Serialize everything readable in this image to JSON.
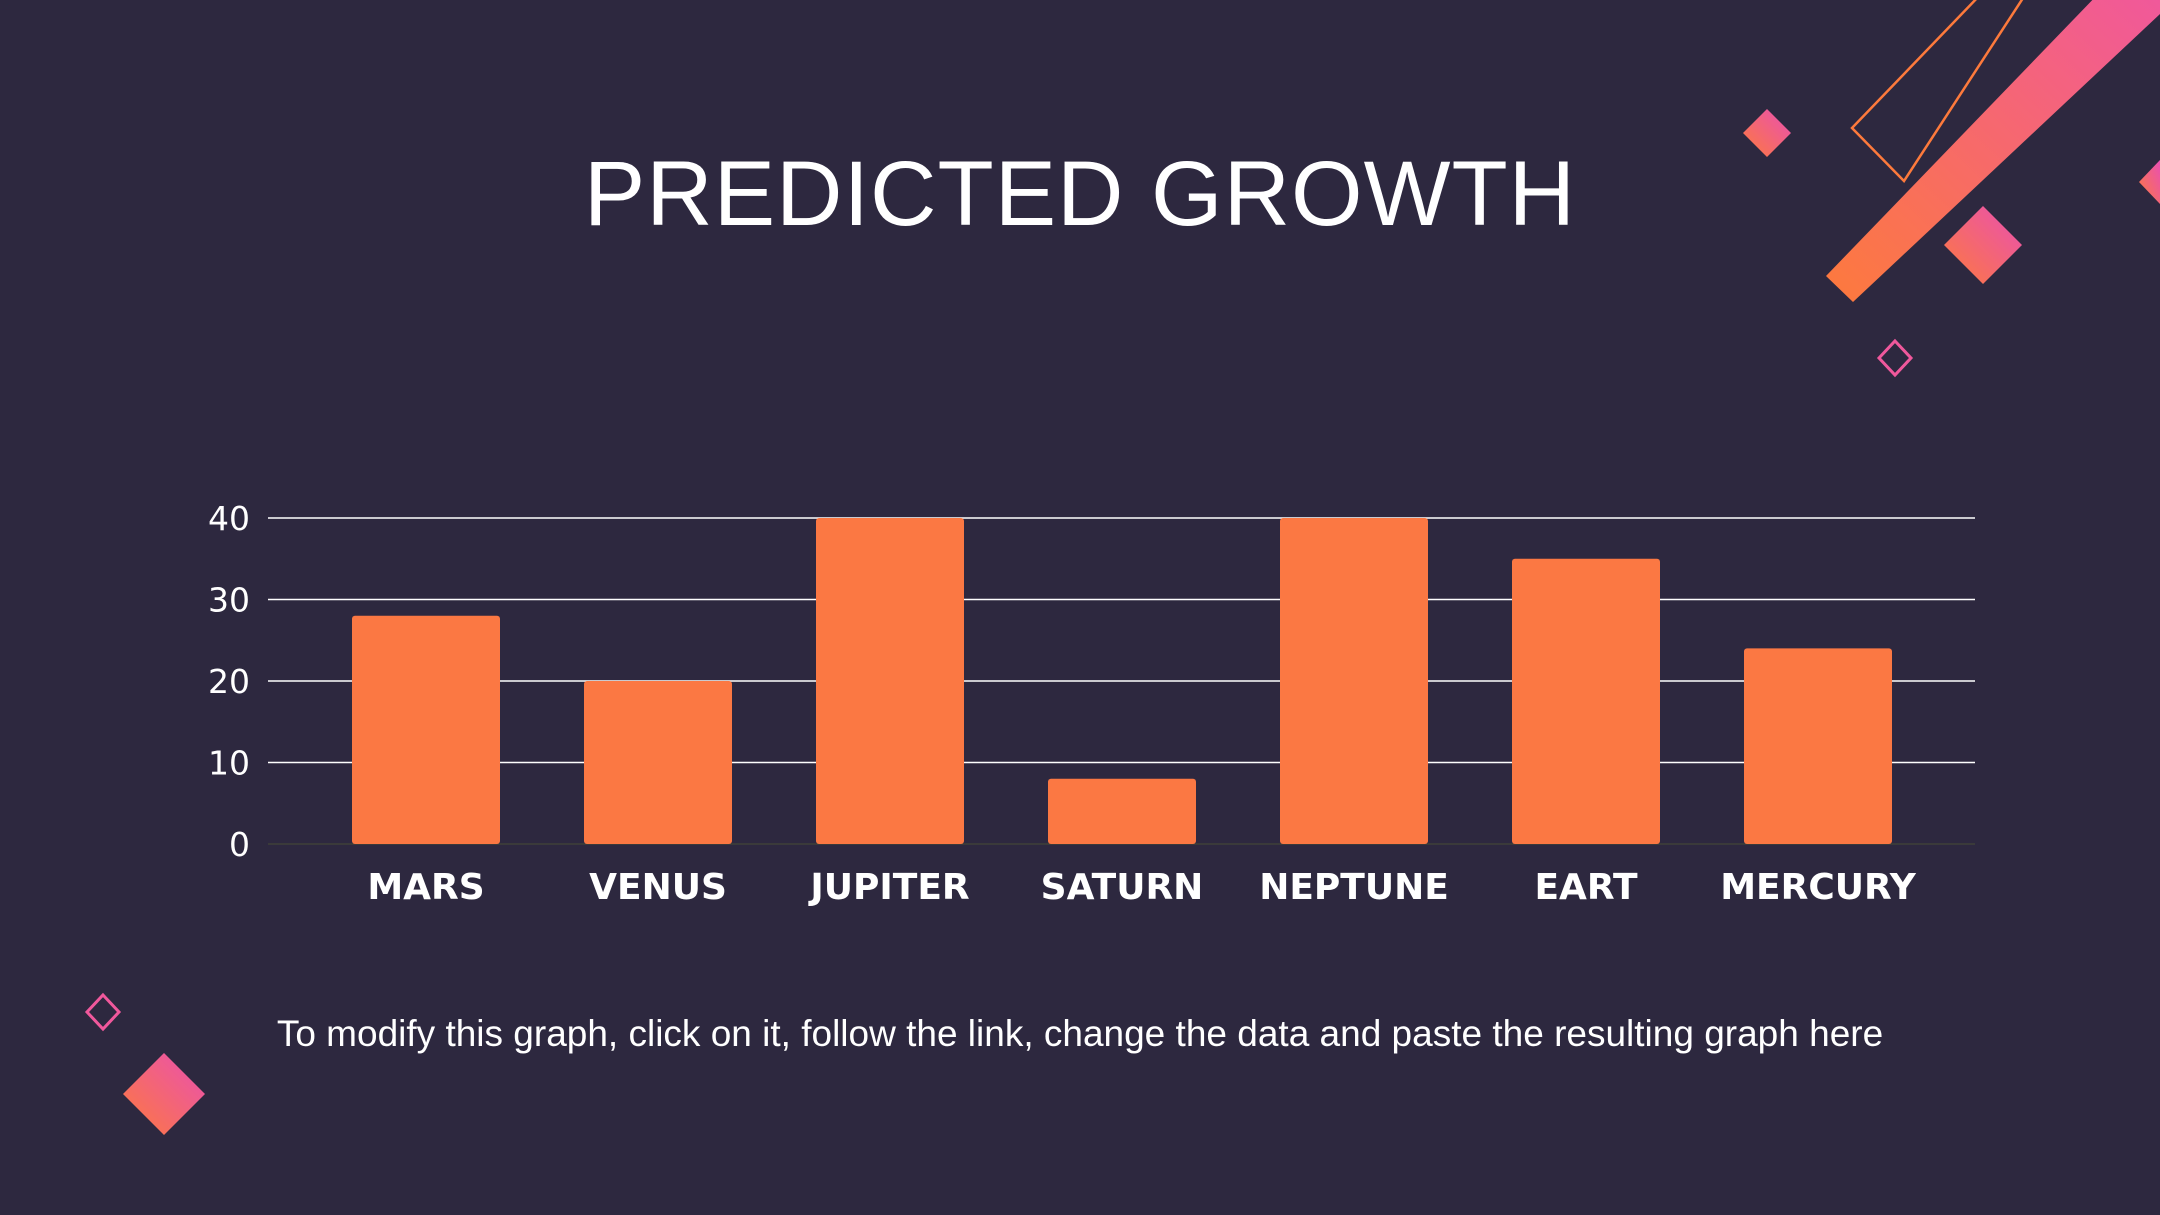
{
  "slide": {
    "title": "PREDICTED GROWTH",
    "caption": "To modify this graph, click on it, follow the link, change the data and paste the resulting graph here"
  },
  "colors": {
    "background": "#2d283f",
    "bar": "#fb7843",
    "gridline": "#ffffff",
    "accent_pink": "#f0589c",
    "accent_orange": "#fd7a3c"
  },
  "decorations": {
    "icons": [
      "diamond-outline-icon",
      "diamond-gradient-icon",
      "stripe-gradient-icon",
      "parallelogram-outline-icon"
    ]
  },
  "chart_data": {
    "type": "bar",
    "categories": [
      "MARS",
      "VENUS",
      "JUPITER",
      "SATURN",
      "NEPTUNE",
      "EART",
      "MERCURY"
    ],
    "values": [
      28,
      20,
      40,
      8,
      40,
      35,
      24
    ],
    "yticks": [
      0,
      10,
      20,
      30,
      40
    ],
    "ylim": [
      0,
      40
    ],
    "grid": true,
    "legend": "none",
    "xlabel": "",
    "ylabel": ""
  }
}
